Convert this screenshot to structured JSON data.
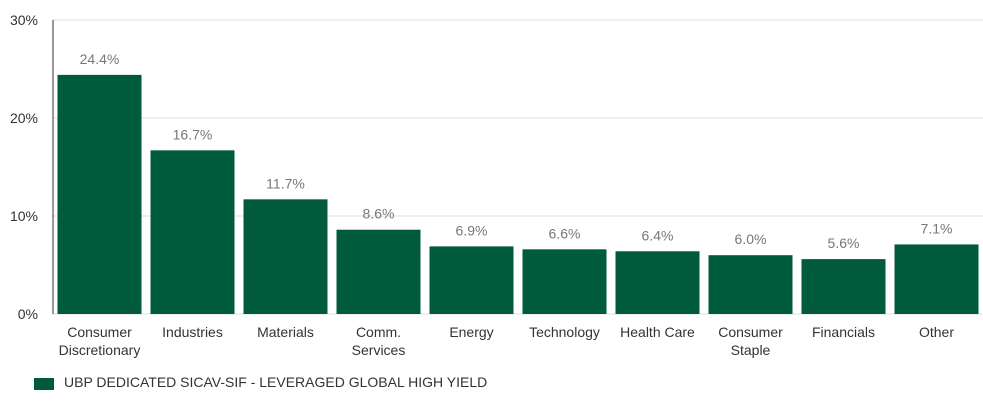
{
  "chart_data": {
    "type": "bar",
    "categories": [
      [
        "Consumer",
        "Discretionary"
      ],
      [
        "Industries"
      ],
      [
        "Materials"
      ],
      [
        "Comm.",
        "Services"
      ],
      [
        "Energy"
      ],
      [
        "Technology"
      ],
      [
        "Health Care"
      ],
      [
        "Consumer",
        "Staple"
      ],
      [
        "Financials"
      ],
      [
        "Other"
      ]
    ],
    "series": [
      {
        "name": "UBP DEDICATED SICAV-SIF - LEVERAGED GLOBAL HIGH YIELD",
        "values": [
          24.4,
          16.7,
          11.7,
          8.6,
          6.9,
          6.6,
          6.4,
          6.0,
          5.6,
          7.1
        ],
        "value_labels": [
          "24.4%",
          "16.7%",
          "11.7%",
          "8.6%",
          "6.9%",
          "6.6%",
          "6.4%",
          "6.0%",
          "5.6%",
          "7.1%"
        ]
      }
    ],
    "ylim": [
      0,
      30
    ],
    "yticks": [
      0,
      10,
      20,
      30
    ],
    "ytick_labels": [
      "0%",
      "10%",
      "20%",
      "30%"
    ],
    "grid": true,
    "legend_position": "bottom-left",
    "colors": {
      "bar": "#005a3c",
      "grid": "#dcdcdc",
      "value_label": "#777777",
      "tick_label": "#333333",
      "axis": "#333333"
    }
  }
}
